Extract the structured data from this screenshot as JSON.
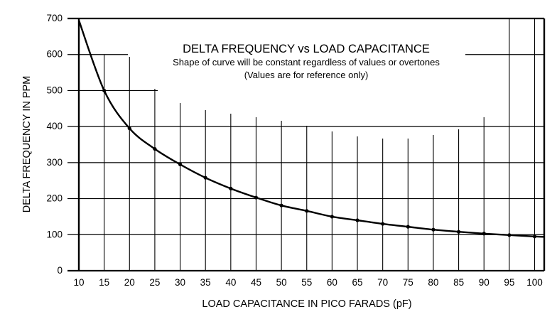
{
  "chart_data": {
    "type": "line",
    "title": "DELTA FREQUENCY vs LOAD CAPACITANCE",
    "subtitle": [
      "Shape of curve will be constant regardless of values or overtones",
      "(Values are for reference only)"
    ],
    "xlabel": "LOAD CAPACITANCE IN PICO FARADS (pF)",
    "ylabel": "DELTA FREQUENCY IN PPM",
    "xlim": [
      10,
      102
    ],
    "ylim": [
      0,
      700
    ],
    "xticks": [
      "10",
      "15",
      "20",
      "25",
      "30",
      "35",
      "40",
      "45",
      "50",
      "55",
      "60",
      "65",
      "70",
      "75",
      "80",
      "85",
      "90",
      "95",
      "100"
    ],
    "yticks": [
      "0",
      "100",
      "200",
      "300",
      "400",
      "500",
      "600",
      "700"
    ],
    "grid": true,
    "series": [
      {
        "x": [
          10,
          15,
          20,
          25,
          30,
          35,
          40,
          45,
          50,
          55,
          60,
          65,
          70,
          75,
          80,
          85,
          90,
          95,
          100
        ],
        "y": [
          695,
          500,
          395,
          338,
          295,
          258,
          228,
          203,
          181,
          166,
          150,
          140,
          130,
          122,
          114,
          108,
          103,
          99,
          95
        ]
      }
    ],
    "colors": {
      "line": "#000000",
      "grid": "#000000"
    }
  }
}
